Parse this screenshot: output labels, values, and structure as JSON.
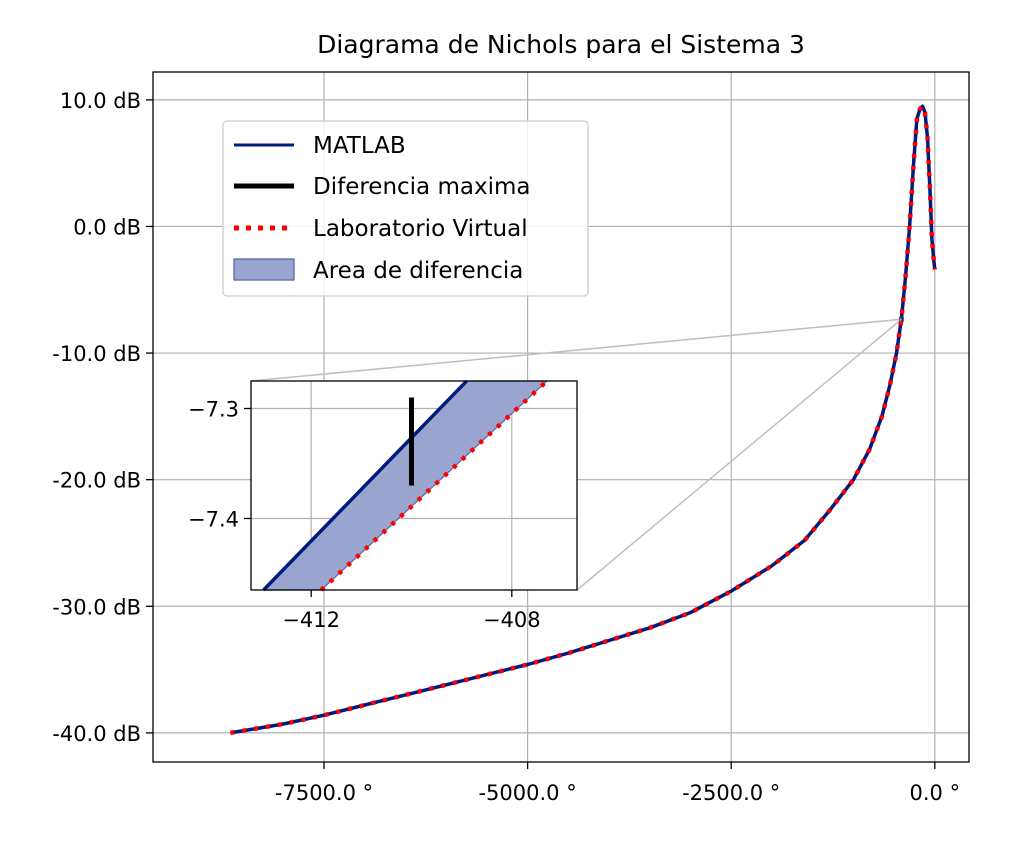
{
  "chart_data": {
    "type": "line",
    "title": "Diagrama de Nichols para el Sistema 3",
    "xlabel": "",
    "ylabel": "",
    "xlim": [
      -9600,
      420
    ],
    "ylim": [
      -42.3,
      12.2
    ],
    "x_ticks": [
      -7500,
      -5000,
      -2500,
      0
    ],
    "x_tick_labels": [
      "-7500.0 °",
      "-5000.0 °",
      "-2500.0 °",
      "0.0 °"
    ],
    "y_ticks": [
      10,
      0,
      -10,
      -20,
      -30,
      -40
    ],
    "y_tick_labels": [
      "10.0 dB",
      "0.0 dB",
      "-10.0 dB",
      "-20.0 dB",
      "-30.0 dB",
      "-40.0 dB"
    ],
    "grid": true,
    "legend_position": "upper-left",
    "legend": [
      "MATLAB",
      "Diferencia maxima",
      "Laboratorio Virtual",
      "Area de diferencia"
    ],
    "colors": {
      "matlab": "#001a7f",
      "diff_max": "#000000",
      "virtual_lab": "#ff0000",
      "area_fill": "#9aa5cf",
      "area_edge": "#5a6aad",
      "connector": "#bfbfbf"
    },
    "series": [
      {
        "name": "MATLAB",
        "points": [
          [
            -8650,
            -40
          ],
          [
            -8000,
            -39.3
          ],
          [
            -7500,
            -38.6
          ],
          [
            -7000,
            -37.8
          ],
          [
            -6500,
            -37
          ],
          [
            -6000,
            -36.2
          ],
          [
            -5500,
            -35.4
          ],
          [
            -5000,
            -34.6
          ],
          [
            -4500,
            -33.7
          ],
          [
            -4000,
            -32.7
          ],
          [
            -3500,
            -31.7
          ],
          [
            -3000,
            -30.5
          ],
          [
            -2500,
            -28.8
          ],
          [
            -2000,
            -26.8
          ],
          [
            -1600,
            -24.8
          ],
          [
            -1300,
            -22.5
          ],
          [
            -1000,
            -20
          ],
          [
            -800,
            -17.6
          ],
          [
            -650,
            -15
          ],
          [
            -550,
            -12.5
          ],
          [
            -470,
            -10
          ],
          [
            -410,
            -7.3
          ],
          [
            -360,
            -4
          ],
          [
            -310,
            0
          ],
          [
            -260,
            5
          ],
          [
            -220,
            8.5
          ],
          [
            -180,
            9.3
          ],
          [
            -150,
            9.5
          ],
          [
            -120,
            9
          ],
          [
            -90,
            7
          ],
          [
            -60,
            3
          ],
          [
            -35,
            -1
          ],
          [
            -15,
            -2.5
          ],
          [
            0,
            -3.4
          ]
        ]
      },
      {
        "name": "Laboratorio Virtual",
        "points": [
          [
            -8650,
            -40
          ],
          [
            -8000,
            -39.3
          ],
          [
            -7500,
            -38.6
          ],
          [
            -7000,
            -37.8
          ],
          [
            -6500,
            -37
          ],
          [
            -6000,
            -36.2
          ],
          [
            -5500,
            -35.4
          ],
          [
            -5000,
            -34.6
          ],
          [
            -4500,
            -33.7
          ],
          [
            -4000,
            -32.7
          ],
          [
            -3500,
            -31.7
          ],
          [
            -3000,
            -30.5
          ],
          [
            -2500,
            -28.8
          ],
          [
            -2000,
            -26.8
          ],
          [
            -1600,
            -24.8
          ],
          [
            -1300,
            -22.5
          ],
          [
            -1000,
            -20
          ],
          [
            -800,
            -17.6
          ],
          [
            -650,
            -15
          ],
          [
            -550,
            -12.5
          ],
          [
            -470,
            -10
          ],
          [
            -410,
            -7.3
          ],
          [
            -360,
            -4
          ],
          [
            -310,
            0
          ],
          [
            -260,
            5
          ],
          [
            -220,
            8.5
          ],
          [
            -180,
            9.3
          ],
          [
            -150,
            9.5
          ],
          [
            -120,
            9
          ],
          [
            -90,
            7
          ],
          [
            -60,
            3
          ],
          [
            -35,
            -1
          ],
          [
            -15,
            -2.5
          ],
          [
            0,
            -3.4
          ]
        ]
      }
    ],
    "inset": {
      "xlim": [
        -413.2,
        -406.7
      ],
      "ylim": [
        -7.465,
        -7.275
      ],
      "x_ticks": [
        -412,
        -408
      ],
      "x_tick_labels": [
        "−412",
        "−408"
      ],
      "y_ticks": [
        -7.3,
        -7.4
      ],
      "y_tick_labels": [
        "−7.3",
        "−7.4"
      ],
      "matlab_line": [
        [
          -412.95,
          -7.465
        ],
        [
          -408.9,
          -7.275
        ]
      ],
      "virtual_lab_line": [
        [
          -411.8,
          -7.465
        ],
        [
          -407.3,
          -7.275
        ]
      ],
      "diferencia_maxima": {
        "x": -410.0,
        "y_top": -7.29,
        "y_bottom": -7.37
      }
    }
  }
}
